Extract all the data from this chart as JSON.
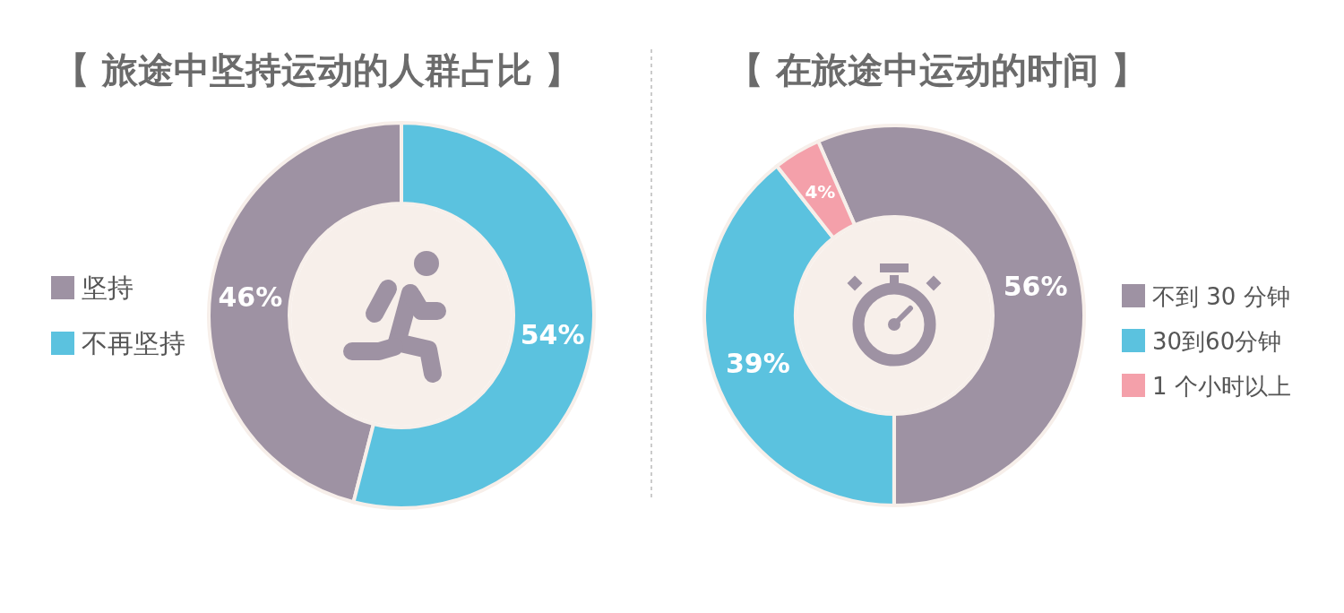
{
  "chart_data": [
    {
      "type": "donut",
      "title": "【 旅途中坚持运动的人群占比 】",
      "categories": [
        "坚持",
        "不再坚持"
      ],
      "values": [
        46,
        54
      ],
      "value_labels": [
        "46%",
        "54%"
      ],
      "colors": [
        "#9e92a3",
        "#5bc2df"
      ],
      "legend": "left"
    },
    {
      "type": "donut",
      "title": "【 在旅途中运动的时间 】",
      "categories": [
        "不到 30 分钟",
        "30到60分钟",
        "1 个小时以上"
      ],
      "values": [
        56,
        39,
        4
      ],
      "value_labels": [
        "56%",
        "39%",
        "4%"
      ],
      "colors": [
        "#9e92a3",
        "#5bc2df",
        "#f4a0aa"
      ],
      "legend": "right"
    }
  ]
}
